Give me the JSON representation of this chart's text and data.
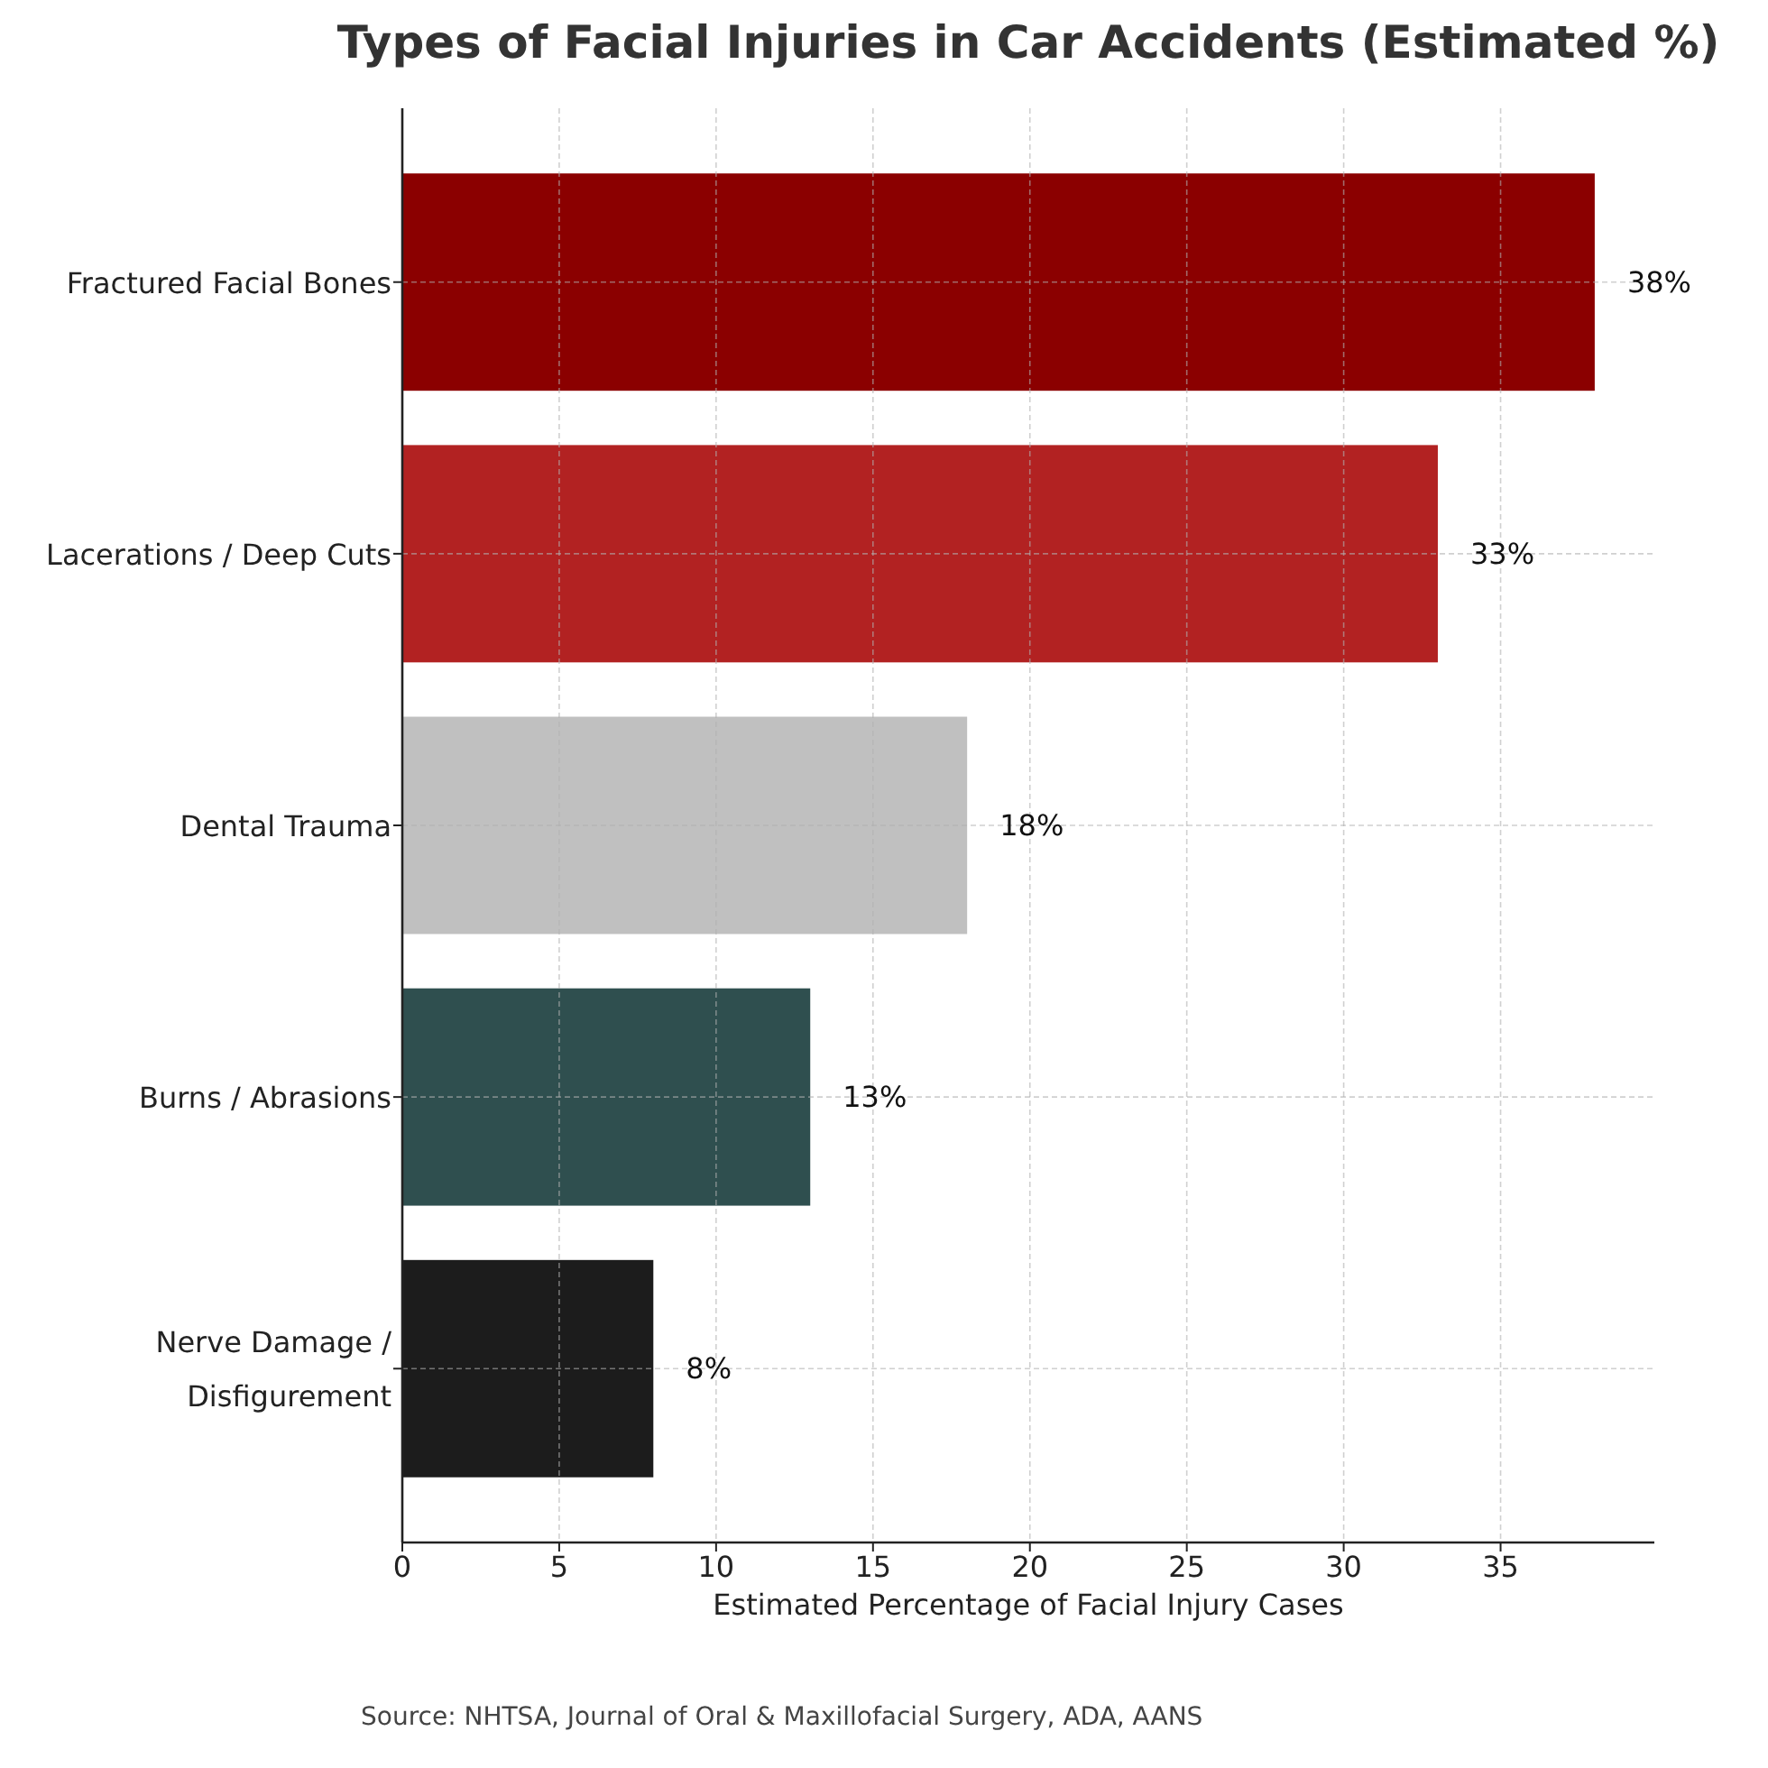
{
  "chart_data": {
    "type": "bar",
    "orientation": "horizontal",
    "title": "Types of Facial Injuries in Car Accidents (Estimated %)",
    "xlabel": "Estimated Percentage of Facial Injury Cases",
    "categories": [
      "Fractured Facial Bones",
      "Lacerations / Deep Cuts",
      "Dental Trauma",
      "Burns / Abrasions",
      "Nerve Damage /\nDisfigurement"
    ],
    "values": [
      38,
      33,
      18,
      13,
      8
    ],
    "colors": [
      "#8b0000",
      "#b22222",
      "#c0c0c0",
      "#2f4f4f",
      "#1c1c1c"
    ],
    "value_labels": [
      "38%",
      "33%",
      "18%",
      "13%",
      "8%"
    ],
    "xlim": [
      0,
      39.9
    ],
    "xticks": [
      0,
      5,
      10,
      15,
      20,
      25,
      30,
      35
    ],
    "grid": true,
    "annotations": [
      "Source: NHTSA, Journal of Oral & Maxillofacial Surgery, ADA, AANS"
    ]
  }
}
